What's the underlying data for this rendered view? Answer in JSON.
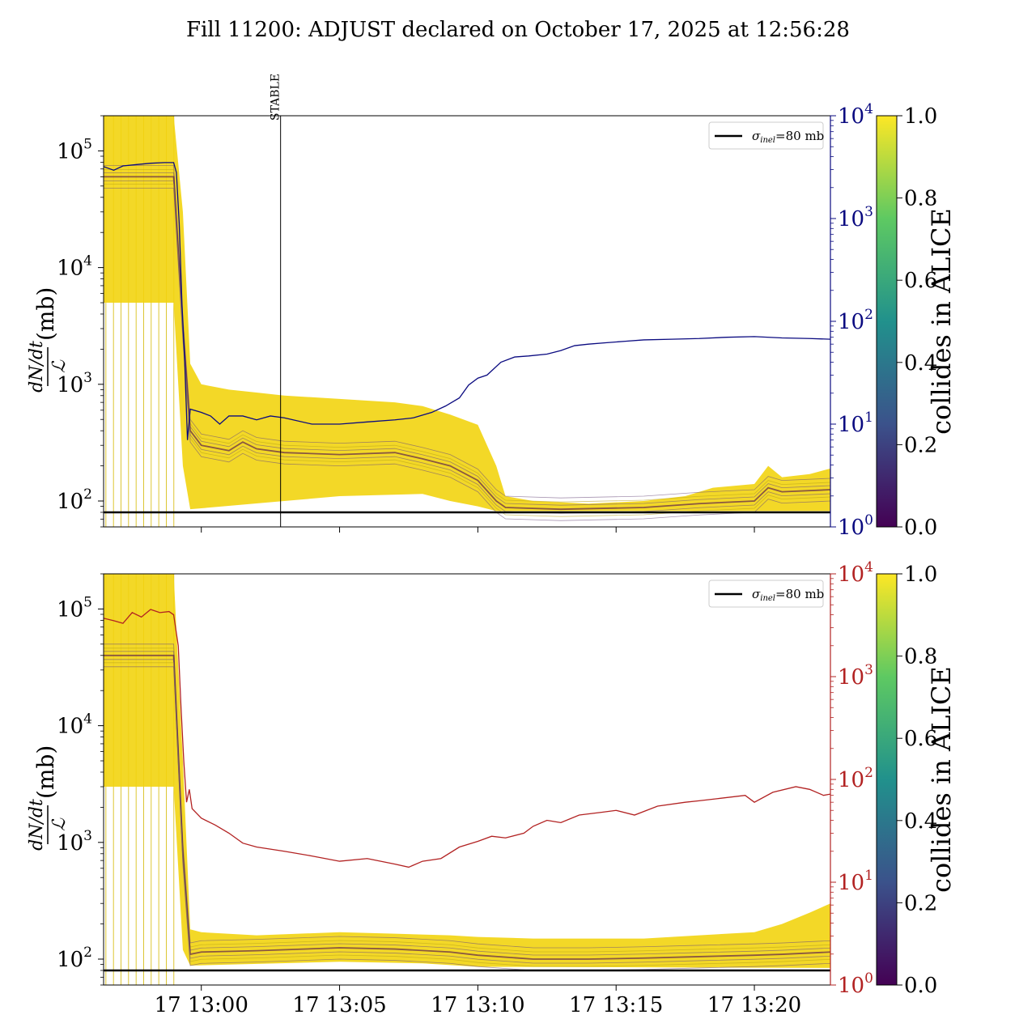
{
  "title": "Fill 11200: ADJUST declared on October 17, 2025 at 12:56:28",
  "colors": {
    "top_secondary": "#0a0a80",
    "bottom_secondary": "#b22222",
    "sigma_line": "#000000",
    "viridis": [
      "#440154",
      "#3b528b",
      "#21918c",
      "#5ec962",
      "#fde725"
    ]
  },
  "chart_data": [
    {
      "type": "line",
      "panel": "top",
      "ylabel_left_num": "dN/dt",
      "ylabel_left_den": "ℒ",
      "ylabel_left_unit": "(mb)",
      "yscale_left": "log",
      "ylim_left": [
        60,
        200000
      ],
      "yticks_left": [
        {
          "base": "10",
          "exp": "2",
          "value": 100
        },
        {
          "base": "10",
          "exp": "3",
          "value": 1000
        },
        {
          "base": "10",
          "exp": "4",
          "value": 10000
        },
        {
          "base": "10",
          "exp": "5",
          "value": 100000
        }
      ],
      "yscale_right": "log",
      "ylim_right": [
        1,
        10000
      ],
      "yticks_right": [
        {
          "base": "10",
          "exp": "0",
          "value": 1
        },
        {
          "base": "10",
          "exp": "1",
          "value": 10
        },
        {
          "base": "10",
          "exp": "2",
          "value": 100
        },
        {
          "base": "10",
          "exp": "3",
          "value": 1000
        },
        {
          "base": "10",
          "exp": "4",
          "value": 10000
        }
      ],
      "xlim_minutes": [
        "12:56:28",
        "13:22:45"
      ],
      "xticks": [
        "17 13:00",
        "17 13:05",
        "17 13:10",
        "17 13:15",
        "17 13:20"
      ],
      "xticks_labeled": false,
      "vertical_marker": {
        "label": "STABLE",
        "time": "13:02:52"
      },
      "legend": {
        "label_sym": "σ",
        "label_sub": "inel",
        "label_rest": "=80 mb",
        "position": "top-right"
      },
      "sigma_inel_mb": 80,
      "secondary_series": {
        "color": "#0a0a80",
        "points": [
          [
            "12:56:28",
            3200
          ],
          [
            "12:56:50",
            2950
          ],
          [
            "12:57:10",
            3250
          ],
          [
            "12:57:40",
            3350
          ],
          [
            "12:58:10",
            3450
          ],
          [
            "12:58:40",
            3500
          ],
          [
            "12:59:00",
            3500
          ],
          [
            "12:59:06",
            2800
          ],
          [
            "12:59:12",
            900
          ],
          [
            "12:59:18",
            150
          ],
          [
            "12:59:24",
            40
          ],
          [
            "12:59:30",
            7
          ],
          [
            "12:59:36",
            14
          ],
          [
            "13:00:00",
            13
          ],
          [
            "13:00:20",
            12
          ],
          [
            "13:00:40",
            10
          ],
          [
            "13:01:00",
            12
          ],
          [
            "13:01:30",
            12
          ],
          [
            "13:02:00",
            11
          ],
          [
            "13:02:30",
            12
          ],
          [
            "13:03:00",
            11.5
          ],
          [
            "13:04:00",
            10
          ],
          [
            "13:05:00",
            10
          ],
          [
            "13:06:00",
            10.5
          ],
          [
            "13:07:00",
            11
          ],
          [
            "13:07:40",
            11.5
          ],
          [
            "13:08:20",
            13
          ],
          [
            "13:08:50",
            15
          ],
          [
            "13:09:20",
            18
          ],
          [
            "13:09:40",
            24
          ],
          [
            "13:10:00",
            28
          ],
          [
            "13:10:20",
            30
          ],
          [
            "13:10:50",
            40
          ],
          [
            "13:11:20",
            45
          ],
          [
            "13:11:50",
            46
          ],
          [
            "13:12:30",
            48
          ],
          [
            "13:13:00",
            52
          ],
          [
            "13:13:30",
            58
          ],
          [
            "13:14:00",
            60
          ],
          [
            "13:14:40",
            62
          ],
          [
            "13:15:20",
            64
          ],
          [
            "13:16:00",
            66
          ],
          [
            "13:17:00",
            67
          ],
          [
            "13:18:00",
            68
          ],
          [
            "13:19:00",
            70
          ],
          [
            "13:20:00",
            71
          ],
          [
            "13:21:00",
            69
          ],
          [
            "13:22:00",
            68
          ],
          [
            "13:22:45",
            67
          ]
        ]
      },
      "primary_envelope": {
        "colorbar_label": "collides in ALICE",
        "colorbar_ticks": [
          "0.0",
          "0.2",
          "0.4",
          "0.6",
          "0.8",
          "1.0"
        ],
        "upper": [
          [
            "12:56:28",
            200000
          ],
          [
            "12:59:00",
            200000
          ],
          [
            "12:59:20",
            30000
          ],
          [
            "12:59:36",
            1500
          ],
          [
            "13:00:00",
            1000
          ],
          [
            "13:01:00",
            900
          ],
          [
            "13:02:00",
            850
          ],
          [
            "13:03:00",
            800
          ],
          [
            "13:05:00",
            750
          ],
          [
            "13:07:00",
            700
          ],
          [
            "13:08:00",
            650
          ],
          [
            "13:09:00",
            550
          ],
          [
            "13:10:00",
            450
          ],
          [
            "13:10:40",
            200
          ],
          [
            "13:11:00",
            110
          ],
          [
            "13:12:00",
            100
          ],
          [
            "13:14:00",
            95
          ],
          [
            "13:16:00",
            100
          ],
          [
            "13:17:30",
            110
          ],
          [
            "13:18:30",
            130
          ],
          [
            "13:20:00",
            140
          ],
          [
            "13:20:30",
            200
          ],
          [
            "13:21:00",
            160
          ],
          [
            "13:22:00",
            170
          ],
          [
            "13:22:45",
            190
          ]
        ],
        "median": [
          [
            "12:56:28",
            60000
          ],
          [
            "12:59:00",
            60000
          ],
          [
            "12:59:20",
            3000
          ],
          [
            "12:59:36",
            400
          ],
          [
            "13:00:00",
            300
          ],
          [
            "13:01:00",
            270
          ],
          [
            "13:01:30",
            320
          ],
          [
            "13:02:00",
            280
          ],
          [
            "13:03:00",
            260
          ],
          [
            "13:05:00",
            250
          ],
          [
            "13:07:00",
            260
          ],
          [
            "13:08:00",
            230
          ],
          [
            "13:09:00",
            200
          ],
          [
            "13:10:00",
            150
          ],
          [
            "13:10:40",
            100
          ],
          [
            "13:11:00",
            88
          ],
          [
            "13:13:00",
            85
          ],
          [
            "13:16:00",
            88
          ],
          [
            "13:18:00",
            95
          ],
          [
            "13:20:00",
            100
          ],
          [
            "13:20:30",
            130
          ],
          [
            "13:21:00",
            120
          ],
          [
            "13:22:45",
            125
          ]
        ],
        "lower": [
          [
            "12:56:28",
            5000
          ],
          [
            "12:59:00",
            5000
          ],
          [
            "12:59:20",
            200
          ],
          [
            "12:59:36",
            85
          ],
          [
            "13:03:00",
            100
          ],
          [
            "13:05:00",
            110
          ],
          [
            "13:08:00",
            115
          ],
          [
            "13:09:00",
            100
          ],
          [
            "13:10:00",
            90
          ],
          [
            "13:10:40",
            82
          ],
          [
            "13:22:45",
            82
          ]
        ]
      }
    },
    {
      "type": "line",
      "panel": "bottom",
      "ylabel_left_num": "dN/dt",
      "ylabel_left_den": "ℒ",
      "ylabel_left_unit": "(mb)",
      "yscale_left": "log",
      "ylim_left": [
        60,
        200000
      ],
      "yticks_left": [
        {
          "base": "10",
          "exp": "2",
          "value": 100
        },
        {
          "base": "10",
          "exp": "3",
          "value": 1000
        },
        {
          "base": "10",
          "exp": "4",
          "value": 10000
        },
        {
          "base": "10",
          "exp": "5",
          "value": 100000
        }
      ],
      "yscale_right": "log",
      "ylim_right": [
        1,
        10000
      ],
      "yticks_right": [
        {
          "base": "10",
          "exp": "0",
          "value": 1
        },
        {
          "base": "10",
          "exp": "1",
          "value": 10
        },
        {
          "base": "10",
          "exp": "2",
          "value": 100
        },
        {
          "base": "10",
          "exp": "3",
          "value": 1000
        },
        {
          "base": "10",
          "exp": "4",
          "value": 10000
        }
      ],
      "xlim_minutes": [
        "12:56:28",
        "13:22:45"
      ],
      "xticks": [
        "17 13:00",
        "17 13:05",
        "17 13:10",
        "17 13:15",
        "17 13:20"
      ],
      "xticks_labeled": true,
      "legend": {
        "label_sym": "σ",
        "label_sub": "inel",
        "label_rest": "=80 mb",
        "position": "top-right"
      },
      "sigma_inel_mb": 80,
      "secondary_series": {
        "color": "#b22222",
        "points": [
          [
            "12:56:28",
            3700
          ],
          [
            "12:56:50",
            3500
          ],
          [
            "12:57:10",
            3300
          ],
          [
            "12:57:30",
            4200
          ],
          [
            "12:57:50",
            3800
          ],
          [
            "12:58:10",
            4500
          ],
          [
            "12:58:30",
            4200
          ],
          [
            "12:58:50",
            4300
          ],
          [
            "12:59:00",
            4000
          ],
          [
            "12:59:10",
            2000
          ],
          [
            "12:59:16",
            500
          ],
          [
            "12:59:22",
            150
          ],
          [
            "12:59:28",
            60
          ],
          [
            "12:59:34",
            80
          ],
          [
            "12:59:40",
            52
          ],
          [
            "13:00:00",
            42
          ],
          [
            "13:00:30",
            36
          ],
          [
            "13:01:00",
            30
          ],
          [
            "13:01:30",
            24
          ],
          [
            "13:02:00",
            22
          ],
          [
            "13:03:00",
            20
          ],
          [
            "13:04:00",
            18
          ],
          [
            "13:05:00",
            16
          ],
          [
            "13:06:00",
            17
          ],
          [
            "13:07:00",
            15
          ],
          [
            "13:07:30",
            14
          ],
          [
            "13:08:00",
            16
          ],
          [
            "13:08:40",
            17
          ],
          [
            "13:09:20",
            22
          ],
          [
            "13:10:00",
            25
          ],
          [
            "13:10:30",
            28
          ],
          [
            "13:11:00",
            27
          ],
          [
            "13:11:40",
            30
          ],
          [
            "13:12:00",
            35
          ],
          [
            "13:12:30",
            40
          ],
          [
            "13:13:00",
            38
          ],
          [
            "13:13:40",
            45
          ],
          [
            "13:14:30",
            48
          ],
          [
            "13:15:00",
            50
          ],
          [
            "13:15:40",
            45
          ],
          [
            "13:16:30",
            55
          ],
          [
            "13:17:30",
            60
          ],
          [
            "13:18:00",
            62
          ],
          [
            "13:18:40",
            65
          ],
          [
            "13:19:40",
            70
          ],
          [
            "13:20:00",
            60
          ],
          [
            "13:20:40",
            75
          ],
          [
            "13:21:30",
            85
          ],
          [
            "13:22:00",
            80
          ],
          [
            "13:22:30",
            70
          ],
          [
            "13:22:45",
            72
          ]
        ]
      },
      "primary_envelope": {
        "colorbar_label": "collides in ALICE",
        "colorbar_ticks": [
          "0.0",
          "0.2",
          "0.4",
          "0.6",
          "0.8",
          "1.0"
        ],
        "upper": [
          [
            "12:56:28",
            200000
          ],
          [
            "12:59:00",
            200000
          ],
          [
            "12:59:20",
            5000
          ],
          [
            "12:59:36",
            180
          ],
          [
            "13:00:00",
            170
          ],
          [
            "13:02:00",
            160
          ],
          [
            "13:05:00",
            170
          ],
          [
            "13:07:00",
            165
          ],
          [
            "13:09:00",
            160
          ],
          [
            "13:10:00",
            155
          ],
          [
            "13:12:00",
            150
          ],
          [
            "13:14:00",
            150
          ],
          [
            "13:16:00",
            150
          ],
          [
            "13:18:00",
            160
          ],
          [
            "13:20:00",
            170
          ],
          [
            "13:21:00",
            200
          ],
          [
            "13:22:00",
            250
          ],
          [
            "13:22:45",
            300
          ]
        ],
        "median": [
          [
            "12:56:28",
            40000
          ],
          [
            "12:59:00",
            40000
          ],
          [
            "12:59:20",
            800
          ],
          [
            "12:59:36",
            110
          ],
          [
            "13:00:00",
            115
          ],
          [
            "13:02:00",
            118
          ],
          [
            "13:05:00",
            125
          ],
          [
            "13:07:00",
            122
          ],
          [
            "13:09:00",
            115
          ],
          [
            "13:10:00",
            108
          ],
          [
            "13:12:00",
            100
          ],
          [
            "13:14:00",
            100
          ],
          [
            "13:16:00",
            102
          ],
          [
            "13:18:00",
            105
          ],
          [
            "13:20:00",
            108
          ],
          [
            "13:21:00",
            110
          ],
          [
            "13:22:45",
            115
          ]
        ],
        "lower": [
          [
            "12:56:28",
            3000
          ],
          [
            "12:59:00",
            3000
          ],
          [
            "12:59:20",
            120
          ],
          [
            "12:59:36",
            88
          ],
          [
            "13:05:00",
            95
          ],
          [
            "13:08:00",
            92
          ],
          [
            "13:10:00",
            86
          ],
          [
            "13:22:45",
            84
          ]
        ]
      }
    }
  ]
}
